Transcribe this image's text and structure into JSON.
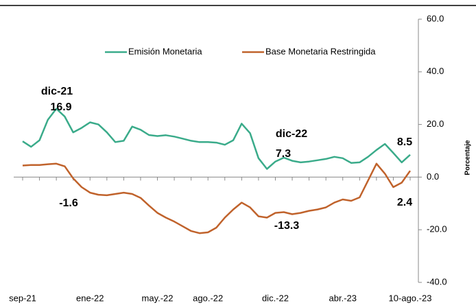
{
  "chart_data": {
    "type": "line",
    "y_label": "Porcentaje",
    "legend": "top",
    "categories": [
      "sep-21",
      null,
      null,
      null,
      null,
      null,
      null,
      null,
      "ene-22",
      null,
      null,
      null,
      null,
      null,
      null,
      null,
      "may.-22",
      null,
      null,
      null,
      null,
      null,
      "ago.-22",
      null,
      null,
      null,
      null,
      null,
      null,
      null,
      "dic.-22",
      null,
      null,
      null,
      null,
      null,
      null,
      null,
      "abr.-23",
      null,
      null,
      null,
      null,
      null,
      null,
      null,
      "10-ago.-23"
    ],
    "series": [
      {
        "name": "Emisión Monetaria",
        "color": "#3aab8a",
        "values": [
          13.6,
          11.5,
          14,
          21.8,
          26,
          23,
          17,
          18.7,
          20.8,
          20,
          17,
          13.3,
          13.8,
          19.2,
          18,
          16,
          15.6,
          15.9,
          15.4,
          14.6,
          13.8,
          13.3,
          13.3,
          13.1,
          12.3,
          14,
          20.3,
          16.7,
          7.2,
          3.1,
          5.9,
          7.4,
          6.2,
          5.6,
          5.9,
          6.4,
          6.9,
          7.7,
          7.2,
          5.4,
          5.6,
          7.7,
          10.3,
          12.6,
          9.2,
          5.6,
          8.5
        ]
      },
      {
        "name": "Base Monetaria Restringida",
        "color": "#c0622b",
        "values": [
          4.4,
          4.6,
          4.6,
          4.9,
          5.1,
          4.1,
          -0.5,
          -3.8,
          -5.9,
          -6.7,
          -6.9,
          -6.4,
          -5.9,
          -6.4,
          -7.9,
          -10.8,
          -13.6,
          -15.4,
          -16.9,
          -18.7,
          -20.5,
          -21.3,
          -21,
          -19.2,
          -15.4,
          -12.3,
          -9.7,
          -11.5,
          -14.9,
          -15.4,
          -13.6,
          -13.3,
          -14.1,
          -13.6,
          -12.8,
          -12.3,
          -11.5,
          -9.7,
          -8.5,
          -9,
          -7.7,
          -1.3,
          5.1,
          1.3,
          -3.8,
          -2.1,
          2.4
        ]
      }
    ],
    "ylim": [
      -40,
      60
    ],
    "yticks": [
      {
        "value": 60,
        "label": "60.0"
      },
      {
        "value": 40,
        "label": "40.0"
      },
      {
        "value": 20,
        "label": "20.0"
      },
      {
        "value": 0,
        "label": "0.0"
      },
      {
        "value": -20,
        "label": "-20.0"
      },
      {
        "value": -40,
        "label": "-40.0"
      }
    ],
    "annotations": [
      {
        "text": "dic-21",
        "color": "#000000"
      },
      {
        "text": "16.9",
        "color": "#3aab8a"
      },
      {
        "text": "-1.6",
        "color": "#c0622b"
      },
      {
        "text": "dic-22",
        "color": "#000000"
      },
      {
        "text": "7.3",
        "color": "#3aab8a"
      },
      {
        "text": "-13.3",
        "color": "#c0622b"
      },
      {
        "text": "8.5",
        "color": "#3aab8a"
      },
      {
        "text": "2.4",
        "color": "#c0622b"
      }
    ]
  }
}
